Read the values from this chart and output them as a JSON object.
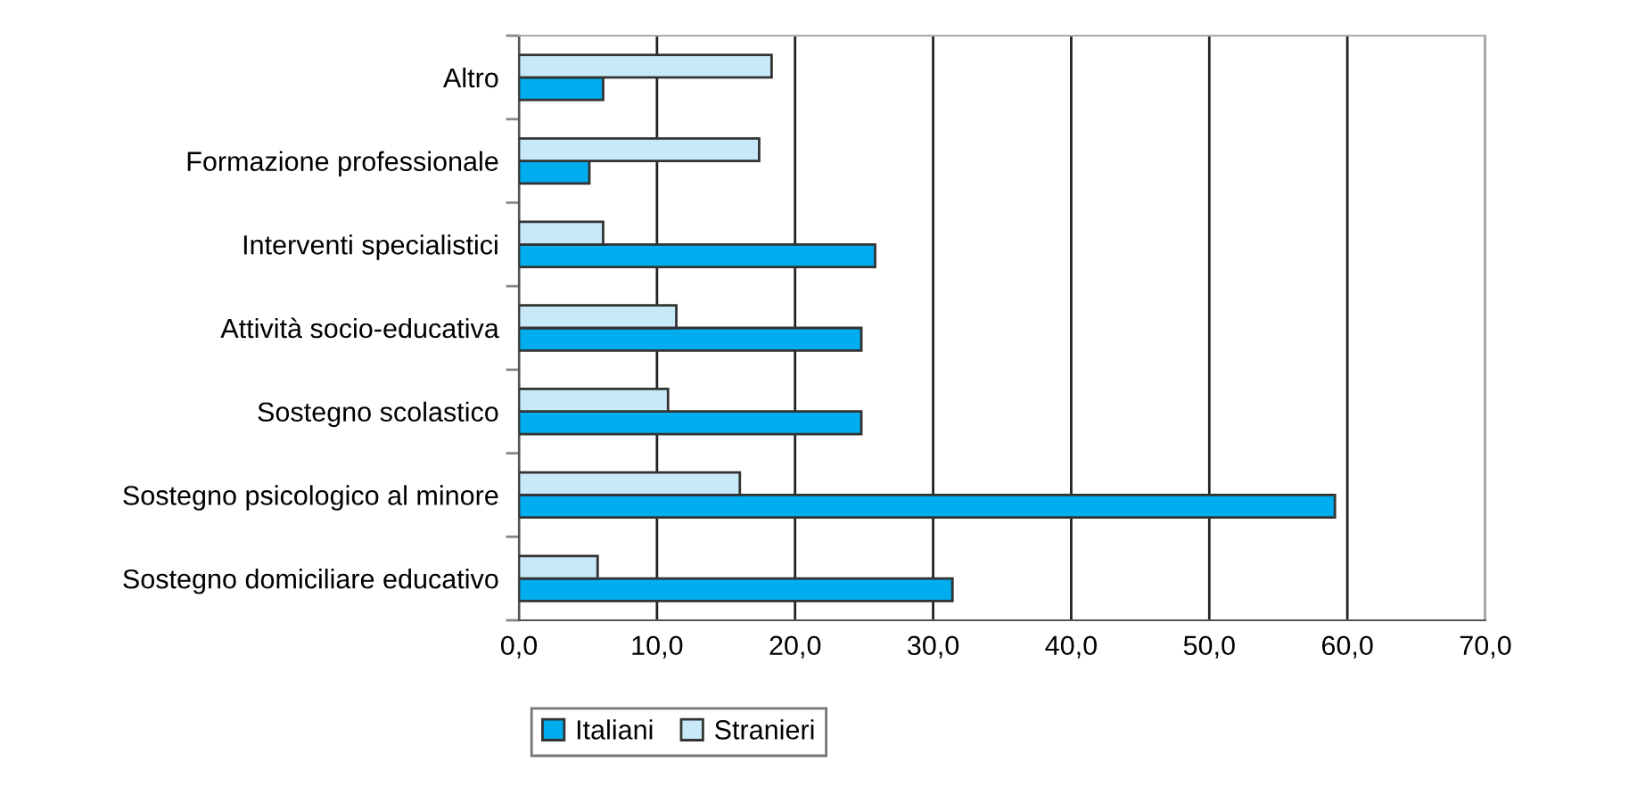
{
  "chart_data": {
    "type": "bar",
    "orientation": "horizontal",
    "categories": [
      "Altro",
      "Formazione professionale",
      "Interventi specialistici",
      "Attività socio-educativa",
      "Sostegno scolastico",
      "Sostegno psicologico al minore",
      "Sostegno domiciliare educativo"
    ],
    "series": [
      {
        "name": "Italiani",
        "color": "#00adef",
        "values": [
          6.1,
          5.1,
          25.8,
          24.8,
          24.8,
          59.1,
          31.4
        ]
      },
      {
        "name": "Stranieri",
        "color": "#c8e9f8",
        "values": [
          18.3,
          17.4,
          6.1,
          11.4,
          10.8,
          16.0,
          5.7
        ]
      }
    ],
    "xlim": [
      0,
      70
    ],
    "xticks": [
      {
        "value": 0,
        "label": "0,0"
      },
      {
        "value": 10,
        "label": "10,0"
      },
      {
        "value": 20,
        "label": "20,0"
      },
      {
        "value": 30,
        "label": "30,0"
      },
      {
        "value": 40,
        "label": "40,0"
      },
      {
        "value": 50,
        "label": "50,0"
      },
      {
        "value": 60,
        "label": "60,0"
      },
      {
        "value": 70,
        "label": "70,0"
      }
    ],
    "grid": "x",
    "legend": "bottom"
  }
}
